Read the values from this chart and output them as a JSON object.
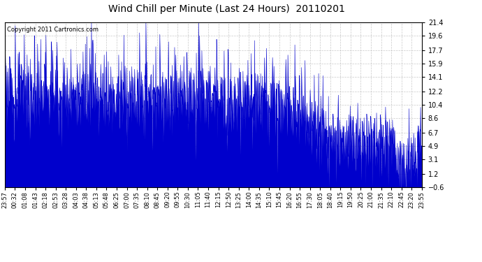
{
  "title": "Wind Chill per Minute (Last 24 Hours)  20110201",
  "copyright_text": "Copyright 2011 Cartronics.com",
  "yticks": [
    21.4,
    19.6,
    17.7,
    15.9,
    14.1,
    12.2,
    10.4,
    8.6,
    6.7,
    4.9,
    3.1,
    1.2,
    -0.6
  ],
  "ymin": -0.6,
  "ymax": 21.4,
  "line_color": "#0000cc",
  "bg_color": "#ffffff",
  "grid_color": "#bbbbbb",
  "xtick_labels": [
    "23:57",
    "00:32",
    "01:08",
    "01:43",
    "02:18",
    "02:53",
    "03:28",
    "04:03",
    "04:38",
    "05:13",
    "05:48",
    "06:25",
    "07:00",
    "07:35",
    "08:10",
    "08:45",
    "09:20",
    "09:55",
    "10:30",
    "11:05",
    "11:40",
    "12:15",
    "12:50",
    "13:25",
    "14:00",
    "14:35",
    "15:10",
    "15:45",
    "16:20",
    "16:55",
    "17:30",
    "18:05",
    "18:40",
    "19:15",
    "19:50",
    "20:25",
    "21:00",
    "21:35",
    "22:10",
    "22:45",
    "23:20",
    "23:55"
  ],
  "num_points": 1440,
  "title_fontsize": 10,
  "tick_fontsize": 7,
  "copyright_fontsize": 6
}
